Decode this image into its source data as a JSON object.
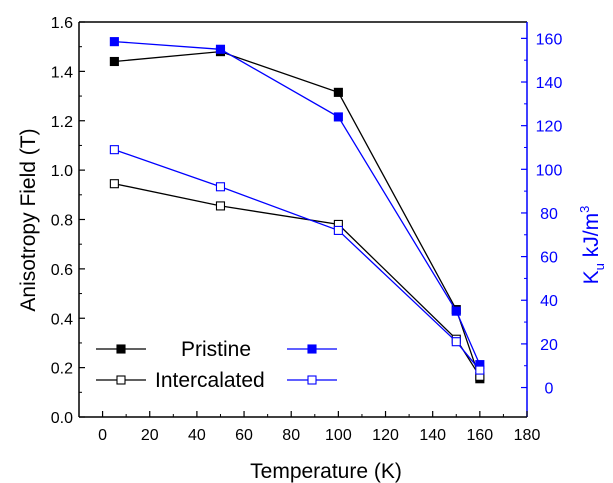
{
  "chart_data": {
    "type": "line",
    "x": [
      5,
      50,
      100,
      150,
      160
    ],
    "xlabel": "Temperature (K)",
    "xlim": [
      -10,
      180
    ],
    "xticks": [
      0,
      20,
      40,
      60,
      80,
      100,
      120,
      140,
      160,
      180
    ],
    "ylabel_left": "Anisotropy Field (T)",
    "ylim_left": [
      0.0,
      1.6
    ],
    "yticks_left": [
      "0.0",
      "0.2",
      "0.4",
      "0.6",
      "0.8",
      "1.0",
      "1.2",
      "1.4",
      "1.6"
    ],
    "ylabel_right": "K",
    "ylabel_right_sub": "u",
    "ylabel_right_unit": " kJ/m",
    "ylabel_right_sup": "3",
    "ylim_right": [
      -13.5,
      167.5
    ],
    "yticks_right": [
      0,
      20,
      40,
      60,
      80,
      100,
      120,
      140,
      160
    ],
    "series": [
      {
        "axis": "left",
        "group": "Pristine",
        "marker": "filled",
        "color": "#000000",
        "values": [
          1.44,
          1.48,
          1.315,
          0.435,
          0.155
        ]
      },
      {
        "axis": "right",
        "group": "Pristine",
        "marker": "filled",
        "color": "#0000ff",
        "values": [
          158.5,
          155,
          124,
          35,
          10.5
        ]
      },
      {
        "axis": "left",
        "group": "Intercalated",
        "marker": "open",
        "color": "#000000",
        "values": [
          0.945,
          0.855,
          0.78,
          0.315,
          0.165
        ]
      },
      {
        "axis": "right",
        "group": "Intercalated",
        "marker": "open",
        "color": "#0000ff",
        "values": [
          109,
          92,
          72,
          21,
          8
        ]
      }
    ],
    "legend": [
      {
        "label": "Pristine",
        "marker": "filled"
      },
      {
        "label": "Intercalated",
        "marker": "open"
      }
    ],
    "legend_position": "lower-left",
    "grid": false,
    "colors": {
      "left_axis": "#000000",
      "right_axis": "#0000ff"
    }
  }
}
